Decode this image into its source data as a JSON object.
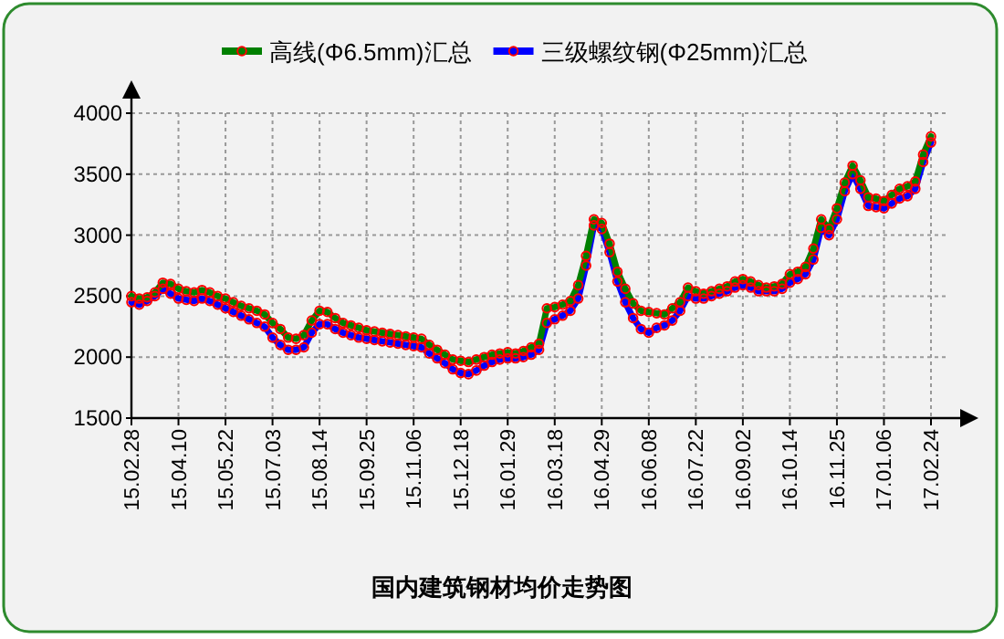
{
  "chart_data": {
    "type": "line",
    "title": "国内建筑钢材均价走势图",
    "categories": [
      "15.02.28",
      null,
      null,
      null,
      null,
      null,
      "15.04.10",
      null,
      null,
      null,
      null,
      null,
      "15.05.22",
      null,
      null,
      null,
      null,
      null,
      "15.07.03",
      null,
      null,
      null,
      null,
      null,
      "15.08.14",
      null,
      null,
      null,
      null,
      null,
      "15.09.25",
      null,
      null,
      null,
      null,
      null,
      "15.11.06",
      null,
      null,
      null,
      null,
      null,
      "15.12.18",
      null,
      null,
      null,
      null,
      null,
      "16.01.29",
      null,
      null,
      null,
      null,
      null,
      "16.03.18",
      null,
      null,
      null,
      null,
      null,
      "16.04.29",
      null,
      null,
      null,
      null,
      null,
      "16.06.08",
      null,
      null,
      null,
      null,
      null,
      "16.07.22",
      null,
      null,
      null,
      null,
      null,
      "16.09.02",
      null,
      null,
      null,
      null,
      null,
      "16.10.14",
      null,
      null,
      null,
      null,
      null,
      "16.11.25",
      null,
      null,
      null,
      null,
      null,
      "17.01.06",
      null,
      null,
      null,
      null,
      null,
      "17.02.24"
    ],
    "series": [
      {
        "name": "高线(Φ6.5mm)汇总",
        "color": "#008000",
        "values": [
          2500,
          2480,
          2490,
          2530,
          2610,
          2600,
          2560,
          2540,
          2530,
          2550,
          2530,
          2500,
          2480,
          2450,
          2420,
          2400,
          2380,
          2350,
          2280,
          2230,
          2160,
          2150,
          2180,
          2300,
          2380,
          2370,
          2320,
          2280,
          2260,
          2240,
          2220,
          2210,
          2200,
          2190,
          2180,
          2170,
          2160,
          2150,
          2100,
          2060,
          2020,
          1980,
          1970,
          1960,
          1980,
          2000,
          2020,
          2030,
          2040,
          2030,
          2050,
          2080,
          2110,
          2400,
          2410,
          2430,
          2460,
          2590,
          2830,
          3130,
          3100,
          2930,
          2700,
          2560,
          2440,
          2380,
          2370,
          2360,
          2350,
          2400,
          2450,
          2570,
          2540,
          2520,
          2540,
          2560,
          2580,
          2620,
          2640,
          2620,
          2590,
          2570,
          2580,
          2600,
          2680,
          2700,
          2740,
          2890,
          3130,
          3050,
          3220,
          3430,
          3570,
          3450,
          3310,
          3300,
          3280,
          3330,
          3380,
          3400,
          3440,
          3660,
          3810
        ]
      },
      {
        "name": "三级螺纹钢(Φ25mm)汇总",
        "color": "#0000ff",
        "values": [
          2450,
          2430,
          2460,
          2500,
          2560,
          2520,
          2480,
          2470,
          2460,
          2480,
          2460,
          2430,
          2400,
          2370,
          2340,
          2310,
          2280,
          2250,
          2160,
          2100,
          2060,
          2060,
          2080,
          2200,
          2270,
          2270,
          2230,
          2200,
          2180,
          2160,
          2150,
          2140,
          2130,
          2120,
          2110,
          2100,
          2090,
          2080,
          2030,
          1990,
          1950,
          1900,
          1870,
          1860,
          1890,
          1930,
          1960,
          1980,
          1990,
          1990,
          2000,
          2020,
          2060,
          2280,
          2310,
          2340,
          2380,
          2480,
          2750,
          3080,
          3050,
          2860,
          2620,
          2450,
          2320,
          2230,
          2200,
          2240,
          2260,
          2300,
          2380,
          2500,
          2480,
          2480,
          2500,
          2520,
          2540,
          2570,
          2590,
          2570,
          2540,
          2540,
          2540,
          2560,
          2610,
          2640,
          2680,
          2800,
          3060,
          3000,
          3130,
          3360,
          3500,
          3380,
          3240,
          3230,
          3220,
          3260,
          3300,
          3320,
          3380,
          3600,
          3760
        ]
      }
    ],
    "ylim": [
      1500,
      4000
    ],
    "yticks": [
      1500,
      2000,
      2500,
      3000,
      3500,
      4000
    ],
    "grid": true,
    "legend": "top",
    "marker": "circle"
  }
}
